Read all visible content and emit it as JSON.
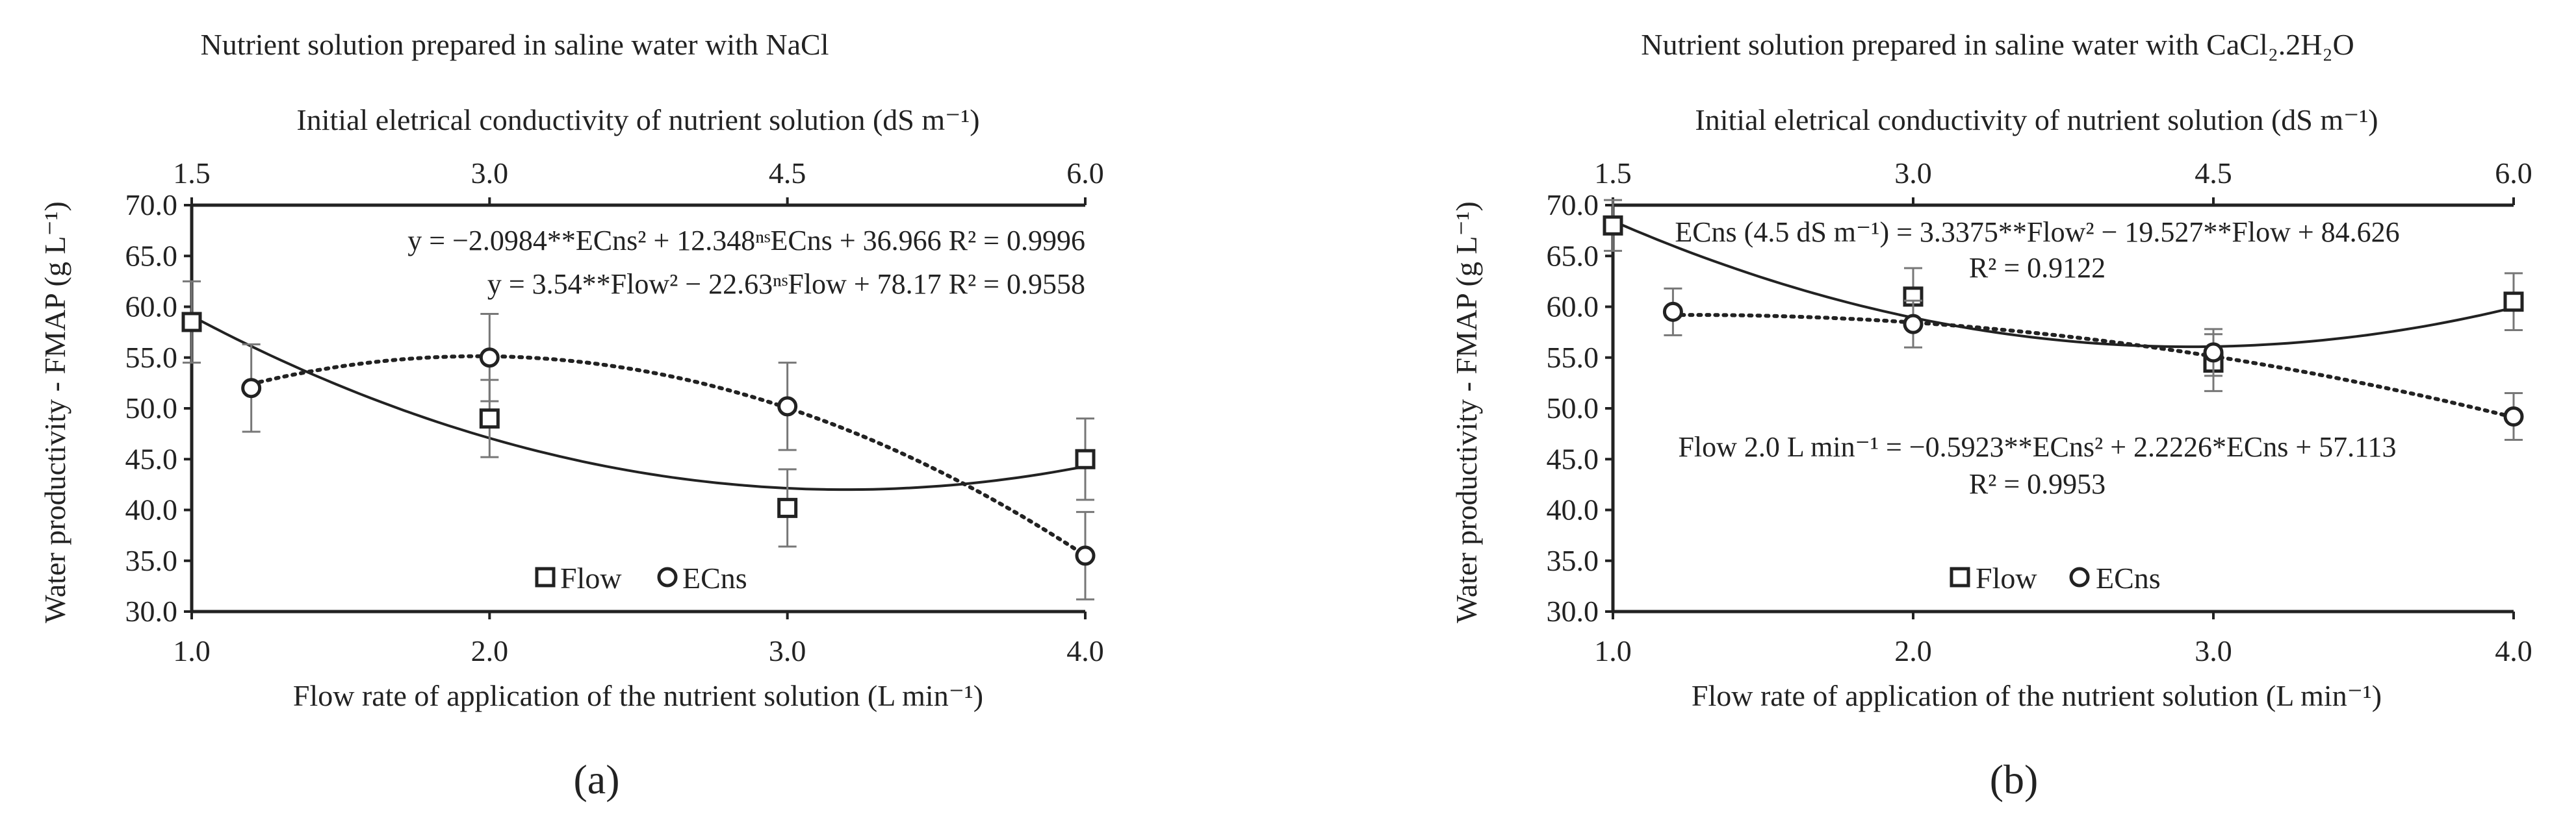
{
  "figure": {
    "panel_labels": [
      "(a)",
      "(b)"
    ]
  },
  "chart_data": [
    {
      "type": "scatter",
      "panel": "(a)",
      "title": "Nutrient solution prepared in saline water with NaCl",
      "xlabel_bottom": "Flow rate of application of the nutrient solution (L min⁻¹)",
      "xlabel_top": "Initial eletrical conductivity of nutrient solution (dS m⁻¹)",
      "ylabel": "Water productivity - FMAP  (g L⁻¹)",
      "xlim_bottom": [
        1.0,
        4.0
      ],
      "xticks_bottom": [
        "1.0",
        "2.0",
        "3.0",
        "4.0"
      ],
      "xlim_top": [
        1.5,
        6.0
      ],
      "xticks_top": [
        "1.5",
        "3.0",
        "4.5",
        "6.0"
      ],
      "ylim": [
        30.0,
        70.0
      ],
      "yticks": [
        "30.0",
        "35.0",
        "40.0",
        "45.0",
        "50.0",
        "55.0",
        "60.0",
        "65.0",
        "70.0"
      ],
      "legend": [
        "Flow",
        "ECns"
      ],
      "series": [
        {
          "name": "Flow",
          "marker": "square",
          "line": "solid",
          "axis": "bottom",
          "x": [
            1.0,
            2.0,
            3.0,
            4.0
          ],
          "y": [
            58.5,
            49.0,
            40.2,
            45.0
          ],
          "err": [
            4.0,
            3.8,
            3.8,
            4.0
          ],
          "fit": {
            "a": 3.54,
            "b": -22.63,
            "c": 78.17
          },
          "equation": "y = 3.54**Flow² − 22.63ⁿˢFlow + 78.17 R² = 0.9558"
        },
        {
          "name": "ECns",
          "marker": "circle",
          "line": "dotted",
          "axis": "top",
          "x": [
            1.8,
            3.0,
            4.5,
            6.0
          ],
          "y": [
            52.0,
            55.0,
            50.2,
            35.5
          ],
          "err": [
            4.3,
            4.3,
            4.3,
            4.3
          ],
          "fit": {
            "a": -2.0984,
            "b": 12.348,
            "c": 36.966
          },
          "equation": "y = −2.0984**ECns² + 12.348ⁿˢECns + 36.966 R² = 0.9996"
        }
      ]
    },
    {
      "type": "scatter",
      "panel": "(b)",
      "title": "Nutrient solution prepared in saline water with CaCl₂.2H₂O",
      "xlabel_bottom": "Flow rate of application of the nutrient solution (L min⁻¹)",
      "xlabel_top": "Initial eletrical conductivity of nutrient solution (dS m⁻¹)",
      "ylabel": "Water productivity - FMAP  (g L⁻¹)",
      "xlim_bottom": [
        1.0,
        4.0
      ],
      "xticks_bottom": [
        "1.0",
        "2.0",
        "3.0",
        "4.0"
      ],
      "xlim_top": [
        1.5,
        6.0
      ],
      "xticks_top": [
        "1.5",
        "3.0",
        "4.5",
        "6.0"
      ],
      "ylim": [
        30.0,
        70.0
      ],
      "yticks": [
        "30.0",
        "35.0",
        "40.0",
        "45.0",
        "50.0",
        "55.0",
        "60.0",
        "65.0",
        "70.0"
      ],
      "legend": [
        "Flow",
        "ECns"
      ],
      "series": [
        {
          "name": "Flow",
          "marker": "square",
          "line": "solid",
          "axis": "bottom",
          "x": [
            1.0,
            2.0,
            3.0,
            4.0
          ],
          "y": [
            68.0,
            61.0,
            54.5,
            60.5
          ],
          "err": [
            2.5,
            2.8,
            2.8,
            2.8
          ],
          "fit": {
            "a": 3.3375,
            "b": -19.527,
            "c": 84.626
          },
          "equation": "ECns (4.5 dS m⁻¹) = 3.3375**Flow² − 19.527**Flow + 84.626",
          "r2": "R² = 0.9122"
        },
        {
          "name": "ECns",
          "marker": "circle",
          "line": "dotted",
          "axis": "top",
          "x": [
            1.8,
            3.0,
            4.5,
            6.0
          ],
          "y": [
            59.5,
            58.3,
            55.5,
            49.2
          ],
          "err": [
            2.3,
            2.3,
            2.3,
            2.3
          ],
          "fit": {
            "a": -0.5923,
            "b": 2.2226,
            "c": 57.113
          },
          "equation": "Flow 2.0 L min⁻¹ = −0.5923**ECns² + 2.2226*ECns + 57.113",
          "r2": "R² = 0.9953"
        }
      ]
    }
  ]
}
